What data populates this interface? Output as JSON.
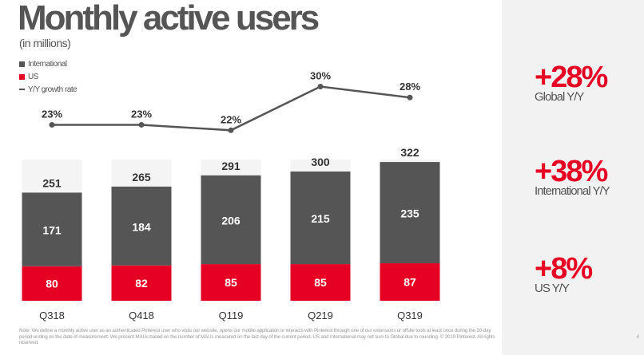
{
  "header": {
    "title": "Monthly active users",
    "subtitle": "(in millions)"
  },
  "legend": [
    {
      "label": "International",
      "color": "#555555",
      "kind": "square"
    },
    {
      "label": "US",
      "color": "#e60023",
      "kind": "square"
    },
    {
      "label": "Y/Y growth rate",
      "color": "#555555",
      "kind": "line"
    }
  ],
  "chart_data": {
    "type": "bar",
    "stacked": true,
    "categories": [
      "Q318",
      "Q418",
      "Q119",
      "Q219",
      "Q319"
    ],
    "series": [
      {
        "name": "US",
        "values": [
          80,
          82,
          85,
          85,
          87
        ],
        "color": "#e60023"
      },
      {
        "name": "International",
        "values": [
          171,
          184,
          206,
          215,
          235
        ],
        "color": "#555555"
      }
    ],
    "totals": [
      251,
      265,
      291,
      300,
      322
    ],
    "growth_rate": {
      "name": "Y/Y growth rate",
      "values": [
        23,
        23,
        22,
        30,
        28
      ],
      "labels": [
        "23%",
        "23%",
        "22%",
        "30%",
        "28%"
      ],
      "color": "#555555"
    },
    "colors": {
      "us": "#e60023",
      "international": "#555555",
      "column_bg": "#f4f4f4"
    }
  },
  "stats": [
    {
      "value": "+28%",
      "label": "Global Y/Y"
    },
    {
      "value": "+38%",
      "label": "International Y/Y"
    },
    {
      "value": "+8%",
      "label": "US Y/Y"
    }
  ],
  "footnote": "Note: We define a monthly active user as an authenticated Pinterest user who visits our website, opens our mobile application or interacts with Pinterest through one of our extensions or offsite tools at least once during the 30-day period ending on the date of measurement. We present MAUs based on the number of MAUs measured on the last day of the current period. US and International may not sum to Global due to rounding. © 2019 Pinterest. All rights reserved.",
  "page_number": "4"
}
